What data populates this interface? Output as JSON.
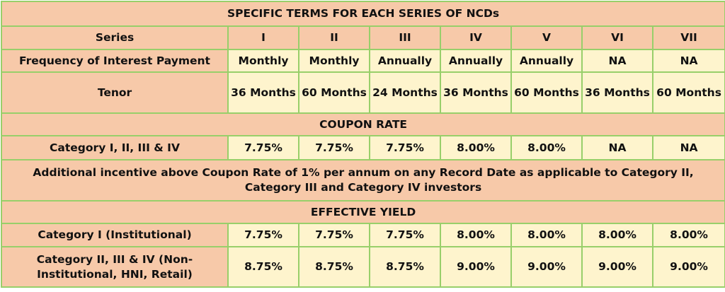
{
  "table": {
    "rows": [
      [
        "SPECIFIC TERMS FOR EACH SERIES OF NCDs"
      ],
      [
        "Series",
        "I",
        "II",
        "III",
        "IV",
        "V",
        "VI",
        "VII"
      ],
      [
        "Frequency of Interest Payment",
        "Monthly",
        "Monthly",
        "Annually",
        "Annually",
        "Annually",
        "NA",
        "NA"
      ],
      [
        "Tenor",
        "36 Months",
        "60 Months",
        "24 Months",
        "36 Months",
        "60 Months",
        "36 Months",
        "60 Months"
      ],
      [
        "COUPON RATE"
      ],
      [
        "Category I, II, III & IV",
        "7.75%",
        "7.75%",
        "7.75%",
        "8.00%",
        "8.00%",
        "NA",
        "NA"
      ],
      [
        "Additional incentive above Coupon Rate of 1% per annum on any Record Date as applicable to Category II, Category III and Category IV investors"
      ],
      [
        "EFFECTIVE YIELD"
      ],
      [
        "Category I (Institutional)",
        "7.75%",
        "7.75%",
        "7.75%",
        "8.00%",
        "8.00%",
        "8.00%",
        "8.00%"
      ],
      [
        "Category II, III & IV (Non-Institutional, HNI, Retail)",
        "8.75%",
        "8.75%",
        "8.75%",
        "9.00%",
        "9.00%",
        "9.00%",
        "9.00%"
      ]
    ]
  }
}
